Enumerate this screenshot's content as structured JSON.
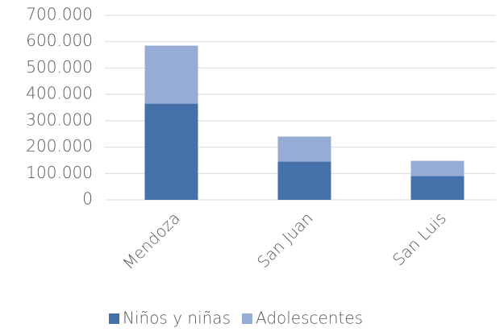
{
  "chart_data": {
    "type": "stacked_bar",
    "categories": [
      "Mendoza",
      "San Juan",
      "San Luis"
    ],
    "series": [
      {
        "name": "Niños y niñas",
        "color": "#4472a8",
        "values": [
          365000,
          145000,
          90000
        ]
      },
      {
        "name": "Adolescentes",
        "color": "#97acd4",
        "values": [
          220000,
          95000,
          58000
        ]
      }
    ],
    "ylim": [
      0,
      700000
    ],
    "yticks": [
      0,
      {
        "value": 100000,
        "label": "100.000"
      },
      {
        "value": 200000,
        "label": "200.000"
      },
      {
        "value": 300000,
        "label": "300.000"
      },
      {
        "value": 400000,
        "label": "400.000"
      },
      {
        "value": 500000,
        "label": "500.000"
      },
      {
        "value": 600000,
        "label": "600.000"
      },
      {
        "value": 700000,
        "label": "700.000"
      }
    ],
    "grid": true,
    "legend": "bottom"
  }
}
